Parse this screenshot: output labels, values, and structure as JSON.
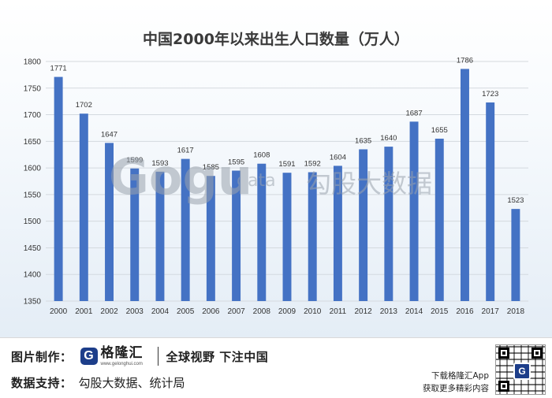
{
  "chart_data": {
    "type": "bar",
    "title": "中国2000年以来出生人口数量（万人）",
    "categories": [
      "2000",
      "2001",
      "2002",
      "2003",
      "2004",
      "2005",
      "2006",
      "2007",
      "2008",
      "2009",
      "2010",
      "2011",
      "2012",
      "2013",
      "2014",
      "2015",
      "2016",
      "2017",
      "2018"
    ],
    "values": [
      1771,
      1702,
      1647,
      1599,
      1593,
      1617,
      1585,
      1595,
      1608,
      1591,
      1592,
      1604,
      1635,
      1640,
      1687,
      1655,
      1786,
      1723,
      1523
    ],
    "y_ticks": [
      1350,
      1400,
      1450,
      1500,
      1550,
      1600,
      1650,
      1700,
      1750,
      1800
    ],
    "ylim": [
      1350,
      1800
    ],
    "xlabel": "",
    "ylabel": "",
    "grid": true,
    "bar_color": "#4472c4"
  },
  "watermark": {
    "brand": "Gogu",
    "sub": "data",
    "cn": "勾股大数据"
  },
  "footer": {
    "credit_label": "图片制作：",
    "brand_icon": "G",
    "brand_name": "格隆汇",
    "brand_site": "www.gelonghui.com",
    "slogan": "全球视野 下注中国",
    "source_label": "数据支持：",
    "source_value": "勾股大数据、统计局",
    "app_line1": "下载格隆汇App",
    "app_line2": "获取更多精彩内容",
    "qr_logo": "G"
  }
}
